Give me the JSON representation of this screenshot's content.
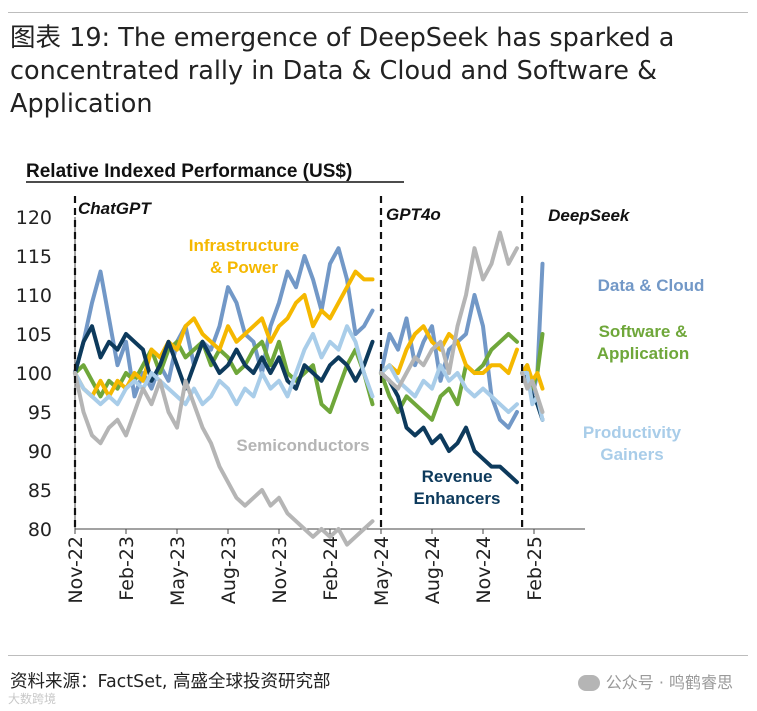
{
  "header": {
    "title": "图表 19: The emergence of DeepSeek has sparked a concentrated rally in Data & Cloud and Software & Application"
  },
  "footer": {
    "source": "资料来源：FactSet, 高盛全球投资研究部",
    "watermark": "公众号 · 鸣鹤睿思",
    "watermark_small": "大数跨境"
  },
  "colors": {
    "data_cloud": "#7298c7",
    "software": "#6fa73a",
    "infrastructure": "#f5b800",
    "revenue": "#0d3a5c",
    "productivity": "#a9cde9",
    "semiconductors": "#b5b5b5"
  },
  "chart_data": {
    "type": "line",
    "title": "Relative Indexed Performance (US$)",
    "xlabel": "",
    "ylabel": "",
    "ylim": [
      80,
      120
    ],
    "yticks": [
      80,
      85,
      90,
      95,
      100,
      105,
      110,
      115,
      120
    ],
    "xticks": [
      "Nov-22",
      "Feb-23",
      "May-23",
      "Aug-23",
      "Nov-23",
      "Feb-24",
      "May-24",
      "Aug-24",
      "Nov-24",
      "Feb-25"
    ],
    "events": [
      {
        "label": "ChatGPT",
        "x": 0
      },
      {
        "label": "GPT4o",
        "x": 18
      },
      {
        "label": "DeepSeek",
        "x": 26.3
      }
    ],
    "series": [
      {
        "name": "Data & Cloud",
        "label_lines": [
          "Data & Cloud"
        ],
        "color_key": "data_cloud",
        "segments": [
          {
            "x": [
              0,
              0.5,
              1,
              1.5,
              2,
              2.5,
              3,
              3.5,
              4,
              4.5,
              5,
              5.5,
              6,
              6.5,
              7,
              7.5,
              8,
              8.5,
              9,
              9.5,
              10,
              10.5,
              11,
              11.5,
              12,
              12.5,
              13,
              13.5,
              14,
              14.5,
              15,
              15.5,
              16,
              16.5,
              17,
              17.5
            ],
            "y": [
              100,
              104,
              109,
              113,
              107,
              101,
              104,
              97,
              100,
              98,
              101,
              99,
              104,
              106,
              101,
              104,
              103,
              106,
              111,
              109,
              105,
              104,
              100,
              106,
              109,
              113,
              111,
              115,
              112,
              108,
              114,
              116,
              112,
              105,
              106,
              108
            ]
          },
          {
            "x": [
              18,
              18.5,
              19,
              19.5,
              20,
              20.5,
              21,
              21.5,
              22,
              22.5,
              23,
              23.5,
              24,
              24.5,
              25,
              25.5,
              26
            ],
            "y": [
              100,
              105,
              103,
              107,
              101,
              104,
              106,
              99,
              103,
              104,
              105,
              110,
              106,
              97,
              94,
              93,
              95
            ]
          },
          {
            "x": [
              26.3,
              26.6,
              26.9,
              27.2,
              27.5
            ],
            "y": [
              100,
              99,
              97,
              100,
              114
            ]
          }
        ]
      },
      {
        "name": "Software & Application",
        "label_lines": [
          "Software &",
          "Application"
        ],
        "color_key": "software",
        "segments": [
          {
            "x": [
              0,
              0.5,
              1,
              1.5,
              2,
              2.5,
              3,
              3.5,
              4,
              4.5,
              5,
              5.5,
              6,
              6.5,
              7,
              7.5,
              8,
              8.5,
              9,
              9.5,
              10,
              10.5,
              11,
              11.5,
              12,
              12.5,
              13,
              13.5,
              14,
              14.5,
              15,
              15.5,
              16,
              16.5,
              17,
              17.5
            ],
            "y": [
              100,
              101,
              99,
              97,
              99,
              98,
              100,
              99,
              101,
              103,
              100,
              103,
              104,
              102,
              103,
              104,
              101,
              103,
              102,
              100,
              101,
              103,
              104,
              101,
              104,
              100,
              99,
              100,
              101,
              96,
              95,
              98,
              101,
              103,
              100,
              96
            ]
          },
          {
            "x": [
              18,
              18.5,
              19,
              19.5,
              20,
              20.5,
              21,
              21.5,
              22,
              22.5,
              23,
              23.5,
              24,
              24.5,
              25,
              25.5,
              26
            ],
            "y": [
              100,
              97,
              95,
              97,
              96,
              95,
              94,
              97,
              98,
              96,
              101,
              100,
              101,
              103,
              104,
              105,
              104
            ]
          },
          {
            "x": [
              26.3,
              26.6,
              26.9,
              27.2,
              27.5
            ],
            "y": [
              100,
              101,
              98,
              100,
              105
            ]
          }
        ]
      },
      {
        "name": "Infrastructure & Power",
        "label_lines": [
          "Infrastructure",
          "& Power"
        ],
        "color_key": "infrastructure",
        "segments": [
          {
            "x": [
              0,
              0.5,
              1,
              1.5,
              2,
              2.5,
              3,
              3.5,
              4,
              4.5,
              5,
              5.5,
              6,
              6.5,
              7,
              7.5,
              8,
              8.5,
              9,
              9.5,
              10,
              10.5,
              11,
              11.5,
              12,
              12.5,
              13,
              13.5,
              14,
              14.5,
              15,
              15.5,
              16,
              16.5,
              17,
              17.5
            ],
            "y": [
              100,
              98,
              97,
              99,
              97,
              99,
              98,
              100,
              99,
              103,
              102,
              104,
              103,
              106,
              107,
              105,
              104,
              103,
              106,
              104,
              105,
              106,
              107,
              104,
              106,
              107,
              109,
              110,
              106,
              108,
              107,
              109,
              111,
              113,
              112,
              112
            ]
          },
          {
            "x": [
              18,
              18.5,
              19,
              19.5,
              20,
              20.5,
              21,
              21.5,
              22,
              22.5,
              23,
              23.5,
              24,
              24.5,
              25,
              25.5,
              26
            ],
            "y": [
              100,
              101,
              100,
              103,
              105,
              106,
              104,
              103,
              105,
              104,
              101,
              100,
              100,
              101,
              101,
              100,
              103
            ]
          },
          {
            "x": [
              26.3,
              26.6,
              26.9,
              27.2,
              27.5
            ],
            "y": [
              100,
              101,
              99,
              100,
              98
            ]
          }
        ]
      },
      {
        "name": "Revenue Enhancers",
        "label_lines": [
          "Revenue",
          "Enhancers"
        ],
        "color_key": "revenue",
        "segments": [
          {
            "x": [
              0,
              0.5,
              1,
              1.5,
              2,
              2.5,
              3,
              3.5,
              4,
              4.5,
              5,
              5.5,
              6,
              6.5,
              7,
              7.5,
              8,
              8.5,
              9,
              9.5,
              10,
              10.5,
              11,
              11.5,
              12,
              12.5,
              13,
              13.5,
              14,
              14.5,
              15,
              15.5,
              16,
              16.5,
              17,
              17.5
            ],
            "y": [
              100,
              104,
              106,
              102,
              104,
              103,
              105,
              104,
              103,
              99,
              101,
              104,
              101,
              98,
              101,
              104,
              102,
              100,
              101,
              103,
              101,
              100,
              102,
              100,
              102,
              99,
              98,
              101,
              100,
              99,
              101,
              102,
              101,
              99,
              101,
              104
            ]
          },
          {
            "x": [
              18,
              18.5,
              19,
              19.5,
              20,
              20.5,
              21,
              21.5,
              22,
              22.5,
              23,
              23.5,
              24,
              24.5,
              25,
              25.5,
              26
            ],
            "y": [
              100,
              99,
              97,
              93,
              92,
              93,
              91,
              92,
              90,
              91,
              93,
              90,
              89,
              88,
              88,
              87,
              86
            ]
          },
          {
            "x": [
              26.3,
              26.6,
              26.9,
              27.2,
              27.5
            ],
            "y": [
              100,
              99,
              97,
              96,
              94
            ]
          }
        ]
      },
      {
        "name": "Productivity Gainers",
        "label_lines": [
          "Productivity",
          "Gainers"
        ],
        "color_key": "productivity",
        "segments": [
          {
            "x": [
              0,
              0.5,
              1,
              1.5,
              2,
              2.5,
              3,
              3.5,
              4,
              4.5,
              5,
              5.5,
              6,
              6.5,
              7,
              7.5,
              8,
              8.5,
              9,
              9.5,
              10,
              10.5,
              11,
              11.5,
              12,
              12.5,
              13,
              13.5,
              14,
              14.5,
              15,
              15.5,
              16,
              16.5,
              17,
              17.5
            ],
            "y": [
              100,
              98,
              97,
              96,
              97,
              96,
              98,
              99,
              98,
              100,
              99,
              98,
              97,
              96,
              98,
              96,
              97,
              99,
              98,
              96,
              98,
              97,
              100,
              98,
              99,
              97,
              100,
              103,
              105,
              102,
              104,
              103,
              106,
              104,
              100,
              97
            ]
          },
          {
            "x": [
              18,
              18.5,
              19,
              19.5,
              20,
              20.5,
              21,
              21.5,
              22,
              22.5,
              23,
              23.5,
              24,
              24.5,
              25,
              25.5,
              26
            ],
            "y": [
              100,
              101,
              99,
              98,
              97,
              99,
              98,
              101,
              99,
              100,
              98,
              97,
              98,
              97,
              96,
              95,
              96
            ]
          },
          {
            "x": [
              26.3,
              26.6,
              26.9,
              27.2,
              27.5
            ],
            "y": [
              100,
              100,
              96,
              97,
              94
            ]
          }
        ]
      },
      {
        "name": "Semiconductors",
        "label_lines": [
          "Semiconductors"
        ],
        "color_key": "semiconductors",
        "segments": [
          {
            "x": [
              0,
              0.5,
              1,
              1.5,
              2,
              2.5,
              3,
              3.5,
              4,
              4.5,
              5,
              5.5,
              6,
              6.5,
              7,
              7.5,
              8,
              8.5,
              9,
              9.5,
              10,
              10.5,
              11,
              11.5,
              12,
              12.5,
              13,
              13.5,
              14,
              14.5,
              15,
              15.5,
              16,
              16.5,
              17,
              17.5
            ],
            "y": [
              100,
              95,
              92,
              91,
              93,
              94,
              92,
              95,
              98,
              96,
              99,
              95,
              93,
              99,
              96,
              93,
              91,
              88,
              86,
              84,
              83,
              84,
              85,
              83,
              84,
              82,
              81,
              80,
              79,
              80,
              79,
              80,
              78,
              79,
              80,
              81
            ]
          },
          {
            "x": [
              18,
              18.5,
              19,
              19.5,
              20,
              20.5,
              21,
              21.5,
              22,
              22.5,
              23,
              23.5,
              24,
              24.5,
              25,
              25.5,
              26
            ],
            "y": [
              100,
              99,
              98,
              100,
              102,
              101,
              103,
              104,
              100,
              106,
              110,
              116,
              112,
              114,
              118,
              114,
              116
            ]
          },
          {
            "x": [
              26.3,
              26.6,
              26.9,
              27.2,
              27.5
            ],
            "y": [
              100,
              98,
              99,
              97,
              95
            ]
          }
        ]
      }
    ]
  }
}
